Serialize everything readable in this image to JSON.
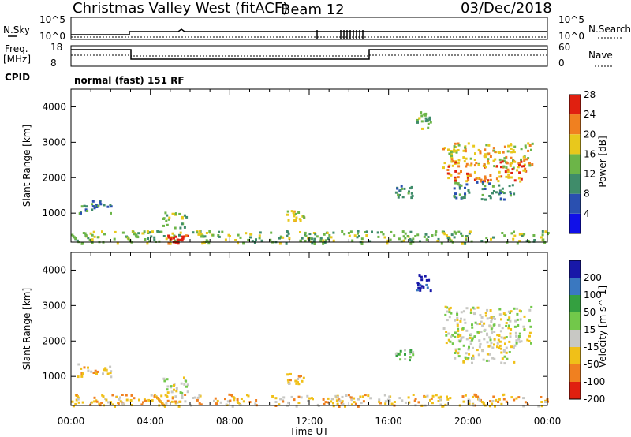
{
  "header": {
    "station": "Christmas Valley West (fitACF)",
    "beam": "Beam 12",
    "date": "03/Dec/2018"
  },
  "top_panels": {
    "nsky_label": "N.Sky",
    "nsky_ticks": [
      "10^5",
      "10^0"
    ],
    "nsearch_label": "N.Search",
    "nsearch_ticks": [
      "10^5",
      "10^0"
    ],
    "freq_label_1": "Freq.",
    "freq_label_2": "[MHz]",
    "freq_ticks": [
      "18",
      "8"
    ],
    "nave_label": "Nave",
    "nave_ticks": [
      "60",
      "0"
    ],
    "cpid_label": "CPID",
    "cpid_value": "normal (fast) 151 RF"
  },
  "chart_data": [
    {
      "type": "heatmap",
      "name": "power",
      "ylabel": "Slant Range [km]",
      "ylim": [
        180,
        4500
      ],
      "yticks": [
        1000,
        2000,
        3000,
        4000
      ],
      "xlim": [
        0,
        24
      ],
      "colorbar_label": "Power [dB]",
      "colorbar_ticks": [
        "4",
        "8",
        "12",
        "16",
        "20",
        "24",
        "28"
      ],
      "colorbar_colors": [
        "#1010e8",
        "#2a50b0",
        "#3f8c6a",
        "#6cb548",
        "#e8c81c",
        "#f08020",
        "#e02010"
      ],
      "regions": [
        {
          "t": [
            0.3,
            2.0
          ],
          "r": [
            1000,
            1400
          ],
          "level": 2
        },
        {
          "t": [
            4.6,
            5.9
          ],
          "r": [
            550,
            1050
          ],
          "level": 3
        },
        {
          "t": [
            10.8,
            11.7
          ],
          "r": [
            800,
            1100
          ],
          "level": 4
        },
        {
          "t": [
            16.3,
            17.2
          ],
          "r": [
            1450,
            1800
          ],
          "level": 2
        },
        {
          "t": [
            17.4,
            18.1
          ],
          "r": [
            3400,
            3900
          ],
          "level": 3
        },
        {
          "t": [
            18.7,
            23.2
          ],
          "r": [
            2300,
            3000
          ],
          "level": 4
        },
        {
          "t": [
            18.9,
            22.9
          ],
          "r": [
            1900,
            2500
          ],
          "level": 5
        },
        {
          "t": [
            19.2,
            22.3
          ],
          "r": [
            1400,
            1900
          ],
          "level": 2
        },
        {
          "t": [
            0.0,
            24.0
          ],
          "r": [
            180,
            520
          ],
          "level": 3
        },
        {
          "t": [
            4.8,
            5.9
          ],
          "r": [
            180,
            420
          ],
          "level": 6
        }
      ]
    },
    {
      "type": "heatmap",
      "name": "velocity",
      "ylabel": "Slant Range [km]",
      "ylim": [
        180,
        4500
      ],
      "yticks": [
        1000,
        2000,
        3000,
        4000
      ],
      "xlim": [
        0,
        24
      ],
      "xticks": [
        "00:00",
        "04:00",
        "08:00",
        "12:00",
        "16:00",
        "20:00",
        "00:00"
      ],
      "xlabel": "Time UT",
      "colorbar_label": "Velocity [m s^-1]",
      "colorbar_ticks": [
        "200",
        "100",
        "50",
        "15",
        "-15",
        "-50",
        "-100",
        "-200"
      ],
      "colorbar_colors": [
        "#1818a8",
        "#3a78c0",
        "#34a040",
        "#72c84a",
        "#c8c8c4",
        "#f0c018",
        "#f08020",
        "#e02010"
      ],
      "regions": [
        {
          "t": [
            0.3,
            2.0
          ],
          "r": [
            1000,
            1400
          ],
          "level": 5
        },
        {
          "t": [
            4.6,
            5.9
          ],
          "r": [
            550,
            1050
          ],
          "level": 4
        },
        {
          "t": [
            10.8,
            11.7
          ],
          "r": [
            800,
            1100
          ],
          "level": 5
        },
        {
          "t": [
            16.3,
            17.2
          ],
          "r": [
            1450,
            1800
          ],
          "level": 3
        },
        {
          "t": [
            17.4,
            18.1
          ],
          "r": [
            3400,
            3900
          ],
          "level": 0
        },
        {
          "t": [
            18.7,
            23.2
          ],
          "r": [
            1900,
            3000
          ],
          "level": 4
        },
        {
          "t": [
            19.2,
            22.3
          ],
          "r": [
            1400,
            1900
          ],
          "level": 4
        },
        {
          "t": [
            0.0,
            24.0
          ],
          "r": [
            180,
            520
          ],
          "level": 5
        }
      ]
    }
  ]
}
